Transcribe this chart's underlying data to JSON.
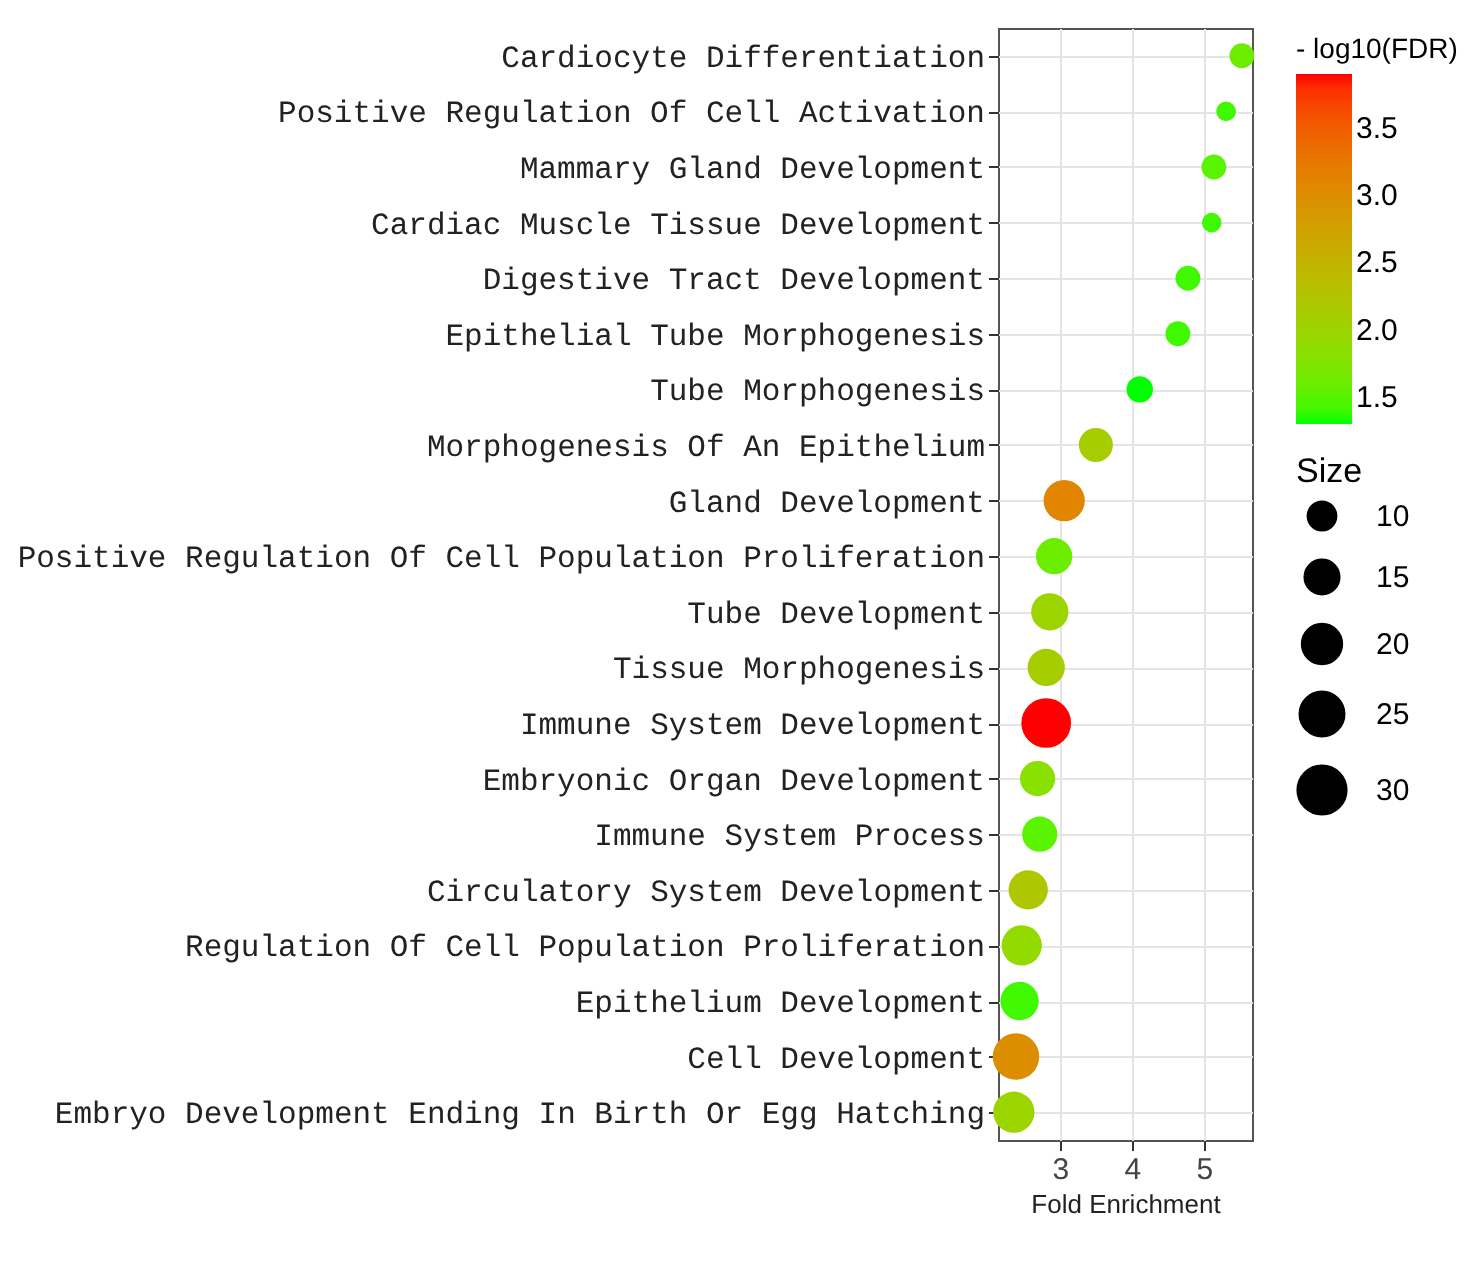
{
  "chart_data": {
    "type": "bubble",
    "orientation": "horizontal",
    "xlabel": "Fold Enrichment",
    "legend_title": "Size",
    "clabel": "- log10(FDR)",
    "categories": [
      "Cardiocyte Differentiation",
      "Positive Regulation Of Cell Activation",
      "Mammary Gland Development",
      "Cardiac Muscle Tissue Development",
      "Digestive Tract Development",
      "Epithelial Tube Morphogenesis",
      "Tube Morphogenesis",
      "Morphogenesis Of An Epithelium",
      "Gland Development",
      "Positive Regulation Of Cell Population Proliferation",
      "Tube Development",
      "Tissue Morphogenesis",
      "Immune System Development",
      "Embryonic Organ Development",
      "Immune System Process",
      "Circulatory System Development",
      "Regulation Of Cell Population Proliferation",
      "Epithelium Development",
      "Cell Development",
      "Embryo Development Ending In Birth Or Egg Hatching"
    ],
    "values": [
      5.53,
      5.31,
      5.14,
      5.11,
      4.78,
      4.64,
      4.11,
      3.5,
      3.06,
      2.92,
      2.86,
      2.81,
      2.81,
      2.69,
      2.72,
      2.56,
      2.47,
      2.44,
      2.39,
      2.36
    ],
    "sizes": [
      8,
      5,
      8,
      5,
      8,
      8,
      9,
      15,
      22,
      17,
      18,
      18,
      32,
      16,
      16,
      20,
      21,
      19,
      28,
      22
    ],
    "cvalues": [
      1.6,
      1.4,
      1.5,
      1.4,
      1.4,
      1.4,
      1.3,
      2.1,
      3.1,
      1.6,
      2.0,
      2.1,
      3.9,
      1.8,
      1.5,
      2.2,
      1.9,
      1.4,
      3.0,
      2.0
    ],
    "clim": [
      1.3,
      3.9
    ],
    "cticks": [
      1.5,
      {
        "value": 2,
        "label": "2.0"
      },
      2.5,
      {
        "value": 3,
        "label": "3.0"
      },
      3.5
    ],
    "size_legend": [
      10,
      15,
      20,
      25,
      30
    ],
    "xlim": [
      2.14,
      5.67
    ],
    "xticks": [
      3,
      4,
      5
    ],
    "grid": true,
    "marker": "circle"
  }
}
